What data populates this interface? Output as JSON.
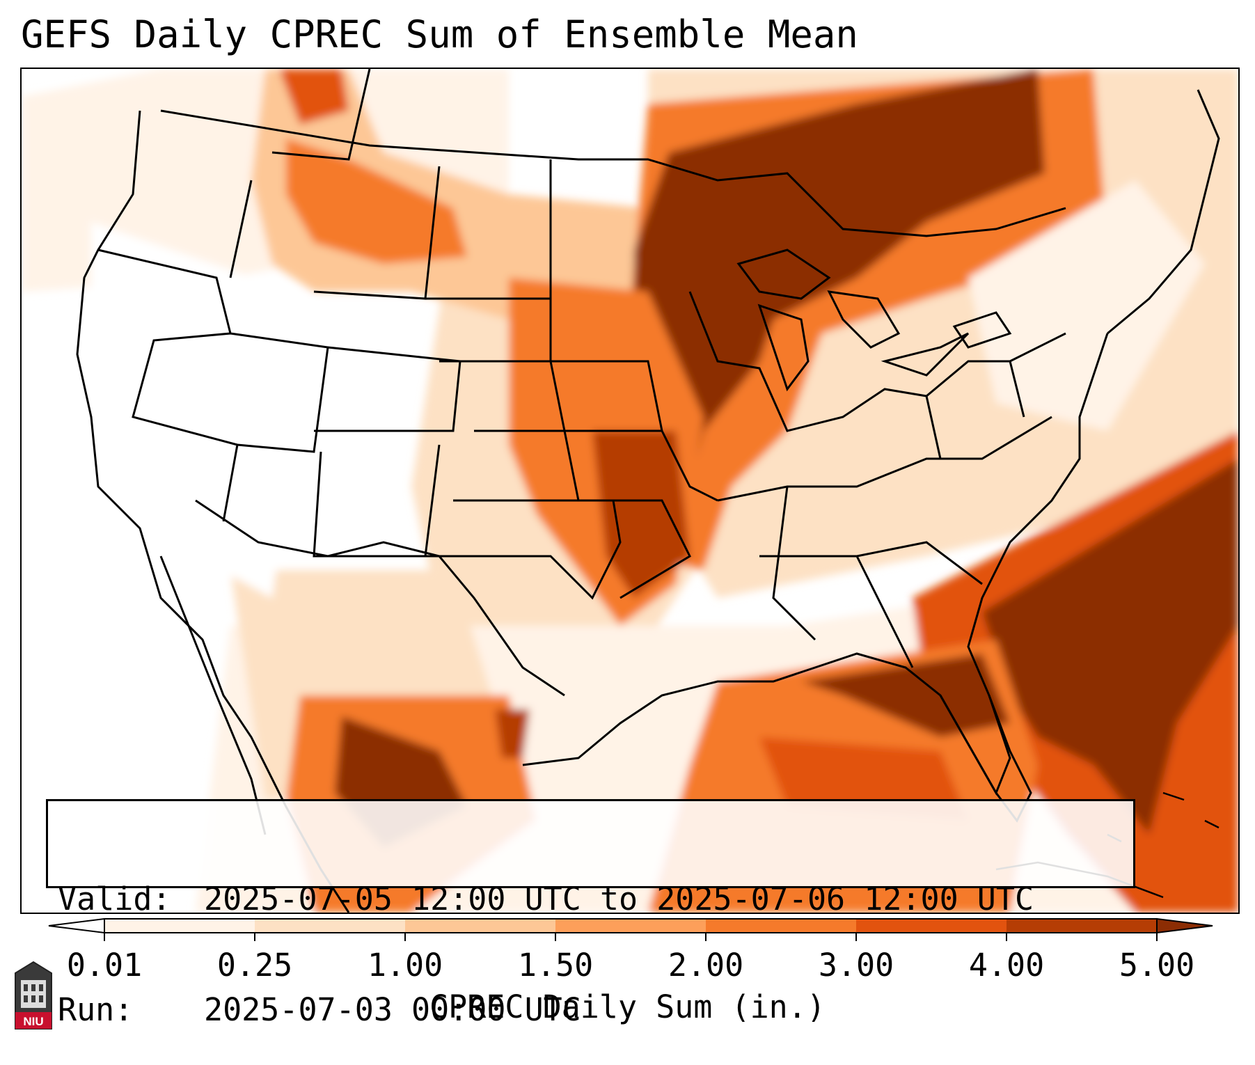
{
  "title": "GEFS Daily CPREC Sum of Ensemble Mean",
  "validity": {
    "valid_label": "Valid:",
    "valid_value": "2025-07-05 12:00 UTC to 2025-07-06 12:00 UTC",
    "run_label": "Run:",
    "run_value": "2025-07-03 00:00 UTC"
  },
  "colorbar": {
    "label": "CPREC Daily Sum (in.)",
    "ticks": [
      "0.01",
      "0.25",
      "1.00",
      "1.50",
      "2.00",
      "3.00",
      "4.00",
      "5.00"
    ],
    "colors": [
      "#fff3e7",
      "#fde1c4",
      "#fdc796",
      "#fd9f5a",
      "#f57a2b",
      "#e2530f",
      "#b53d05"
    ],
    "over_color": "#8c2d04",
    "under_color": "#ffffff"
  },
  "logo": {
    "text": "NIU"
  },
  "map": {
    "land_line_color": "#000000",
    "precip_regions": [
      {
        "name": "northern-rockies-band",
        "level": 4
      },
      {
        "name": "upper-midwest-great-lakes",
        "level": 7
      },
      {
        "name": "central-plains",
        "level": 5
      },
      {
        "name": "southeast-atlantic",
        "level": 7
      },
      {
        "name": "gulf-of-mexico",
        "level": 6
      },
      {
        "name": "mexico-sierra-madre",
        "level": 6
      }
    ]
  }
}
